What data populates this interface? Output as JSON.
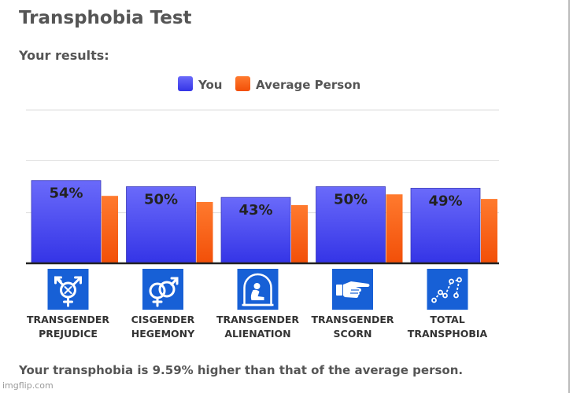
{
  "page": {
    "title": "Transphobia Test",
    "subtitle": "Your results:",
    "summary": "Your transphobia is 9.59% higher than that of the average person.",
    "watermark": "imgflip.com"
  },
  "chart_data": {
    "type": "bar",
    "categories": [
      [
        "TRANSGENDER",
        "PREJUDICE"
      ],
      [
        "CISGENDER",
        "HEGEMONY"
      ],
      [
        "TRANSGENDER",
        "ALIENATION"
      ],
      [
        "TRANSGENDER",
        "SCORN"
      ],
      [
        "TOTAL",
        "TRANSPHOBIA"
      ]
    ],
    "category_icons": [
      "transgender-symbol-icon",
      "cisgender-symbol-icon",
      "alienation-figure-icon",
      "pointing-hand-icon",
      "trend-line-icon"
    ],
    "series": [
      {
        "name": "You",
        "values": [
          54,
          50,
          43,
          50,
          49
        ],
        "data_labels": [
          "54%",
          "50%",
          "43%",
          "50%",
          "49%"
        ],
        "color": "#5b5bf2"
      },
      {
        "name": "Average Person",
        "values": [
          44,
          40,
          38,
          45,
          42
        ],
        "color": "#fa5f16"
      }
    ],
    "ylim": [
      0,
      100
    ],
    "grid": true,
    "legend": "top-center",
    "icon_color": "#1760d6"
  }
}
